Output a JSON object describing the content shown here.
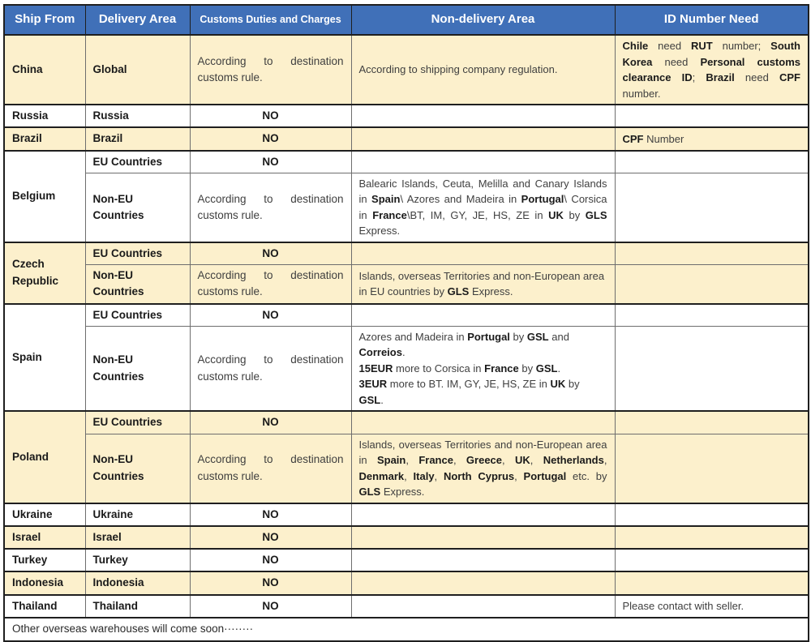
{
  "colors": {
    "header_bg": "#4070B8",
    "header_text": "#FFFFFF",
    "row_cream": "#FCF0CC",
    "row_white": "#FFFFFF",
    "border_dark": "#1F1F1F"
  },
  "header": {
    "ship_from": "Ship From",
    "delivery_area": "Delivery Area",
    "customs": "Customs Duties and Charges",
    "non_delivery": "Non-delivery Area",
    "id_need": "ID Number Need"
  },
  "rows": {
    "china": {
      "ship": "China",
      "area": "Global",
      "customs": "According to destination customs rule.",
      "non_delivery": "According to shipping company regulation.",
      "id_runs": [
        {
          "t": "Chile",
          "b": true
        },
        {
          "t": " need "
        },
        {
          "t": "RUT",
          "b": true
        },
        {
          "t": " number; "
        },
        {
          "t": "South Korea",
          "b": true
        },
        {
          "t": " need "
        },
        {
          "t": "Personal customs clearance ID",
          "b": true
        },
        {
          "t": "; "
        },
        {
          "t": "Brazil",
          "b": true
        },
        {
          "t": " need "
        },
        {
          "t": "CPF",
          "b": true
        },
        {
          "t": " number."
        }
      ]
    },
    "russia": {
      "ship": "Russia",
      "area": "Russia",
      "customs": "NO"
    },
    "brazil": {
      "ship": "Brazil",
      "area": "Brazil",
      "customs": "NO",
      "id_runs": [
        {
          "t": "CPF",
          "b": true
        },
        {
          "t": " Number"
        }
      ]
    },
    "belgium": {
      "ship": "Belgium",
      "eu": {
        "area": "EU Countries",
        "customs": "NO"
      },
      "non_eu": {
        "area": "Non-EU Countries",
        "customs": "According to destination customs rule.",
        "non_delivery_runs": [
          {
            "t": "Balearic Islands, Ceuta, Melilla and Canary Islands in "
          },
          {
            "t": "Spain",
            "b": true
          },
          {
            "t": "\\ Azores and Madeira in "
          },
          {
            "t": "Portugal",
            "b": true
          },
          {
            "t": "\\ Corsica in "
          },
          {
            "t": "France",
            "b": true
          },
          {
            "t": "\\BT, IM, GY, JE, HS, ZE in "
          },
          {
            "t": "UK",
            "b": true
          },
          {
            "t": " by "
          },
          {
            "t": "GLS",
            "b": true
          },
          {
            "t": " Express."
          }
        ]
      }
    },
    "czech_republic": {
      "ship": "Czech Republic",
      "eu": {
        "area": "EU Countries",
        "customs": "NO"
      },
      "non_eu": {
        "area": "Non-EU Countries",
        "customs": "According to destination customs rule.",
        "non_delivery_runs": [
          {
            "t": "Islands, overseas Territories and non-European area in EU countries by "
          },
          {
            "t": "GLS",
            "b": true
          },
          {
            "t": " Express."
          }
        ]
      }
    },
    "spain": {
      "ship": "Spain",
      "eu": {
        "area": "EU Countries",
        "customs": "NO"
      },
      "non_eu": {
        "area": "Non-EU Countries",
        "customs": "According to destination customs rule.",
        "non_delivery_lines": [
          [
            {
              "t": "Azores and Madeira in "
            },
            {
              "t": "Portugal",
              "b": true
            },
            {
              "t": " by "
            },
            {
              "t": "GSL",
              "b": true
            },
            {
              "t": " and "
            },
            {
              "t": "Correios",
              "b": true
            },
            {
              "t": "."
            }
          ],
          [
            {
              "t": "15EUR",
              "b": true
            },
            {
              "t": " more to Corsica in "
            },
            {
              "t": "France",
              "b": true
            },
            {
              "t": " by "
            },
            {
              "t": "GSL",
              "b": true
            },
            {
              "t": "."
            }
          ],
          [
            {
              "t": "3EUR",
              "b": true
            },
            {
              "t": " more to BT. IM, GY, JE, HS, ZE in "
            },
            {
              "t": "UK",
              "b": true
            },
            {
              "t": " by "
            },
            {
              "t": "GSL",
              "b": true
            },
            {
              "t": "."
            }
          ]
        ]
      }
    },
    "poland": {
      "ship": "Poland",
      "eu": {
        "area": "EU Countries",
        "customs": "NO"
      },
      "non_eu": {
        "area": "Non-EU Countries",
        "customs": "According to destination customs rule.",
        "non_delivery_runs": [
          {
            "t": "Islands, overseas Territories and non-European area in "
          },
          {
            "t": "Spain",
            "b": true
          },
          {
            "t": ", "
          },
          {
            "t": "France",
            "b": true
          },
          {
            "t": ", "
          },
          {
            "t": "Greece",
            "b": true
          },
          {
            "t": ", "
          },
          {
            "t": "UK",
            "b": true
          },
          {
            "t": ", "
          },
          {
            "t": "Netherlands",
            "b": true
          },
          {
            "t": ", "
          },
          {
            "t": "Denmark",
            "b": true
          },
          {
            "t": ", "
          },
          {
            "t": "Italy",
            "b": true
          },
          {
            "t": ", "
          },
          {
            "t": "North Cyprus",
            "b": true
          },
          {
            "t": ", "
          },
          {
            "t": "Portugal",
            "b": true
          },
          {
            "t": " etc. by "
          },
          {
            "t": "GLS",
            "b": true
          },
          {
            "t": " Express."
          }
        ]
      }
    },
    "ukraine": {
      "ship": "Ukraine",
      "area": "Ukraine",
      "customs": "NO"
    },
    "israel": {
      "ship": "Israel",
      "area": "Israel",
      "customs": "NO"
    },
    "turkey": {
      "ship": "Turkey",
      "area": "Turkey",
      "customs": "NO"
    },
    "indonesia": {
      "ship": "Indonesia",
      "area": "Indonesia",
      "customs": "NO"
    },
    "thailand": {
      "ship": "Thailand",
      "area": "Thailand",
      "customs": "NO",
      "id": "Please contact with seller."
    }
  },
  "footer": {
    "note": "Other overseas warehouses will come soon········"
  }
}
